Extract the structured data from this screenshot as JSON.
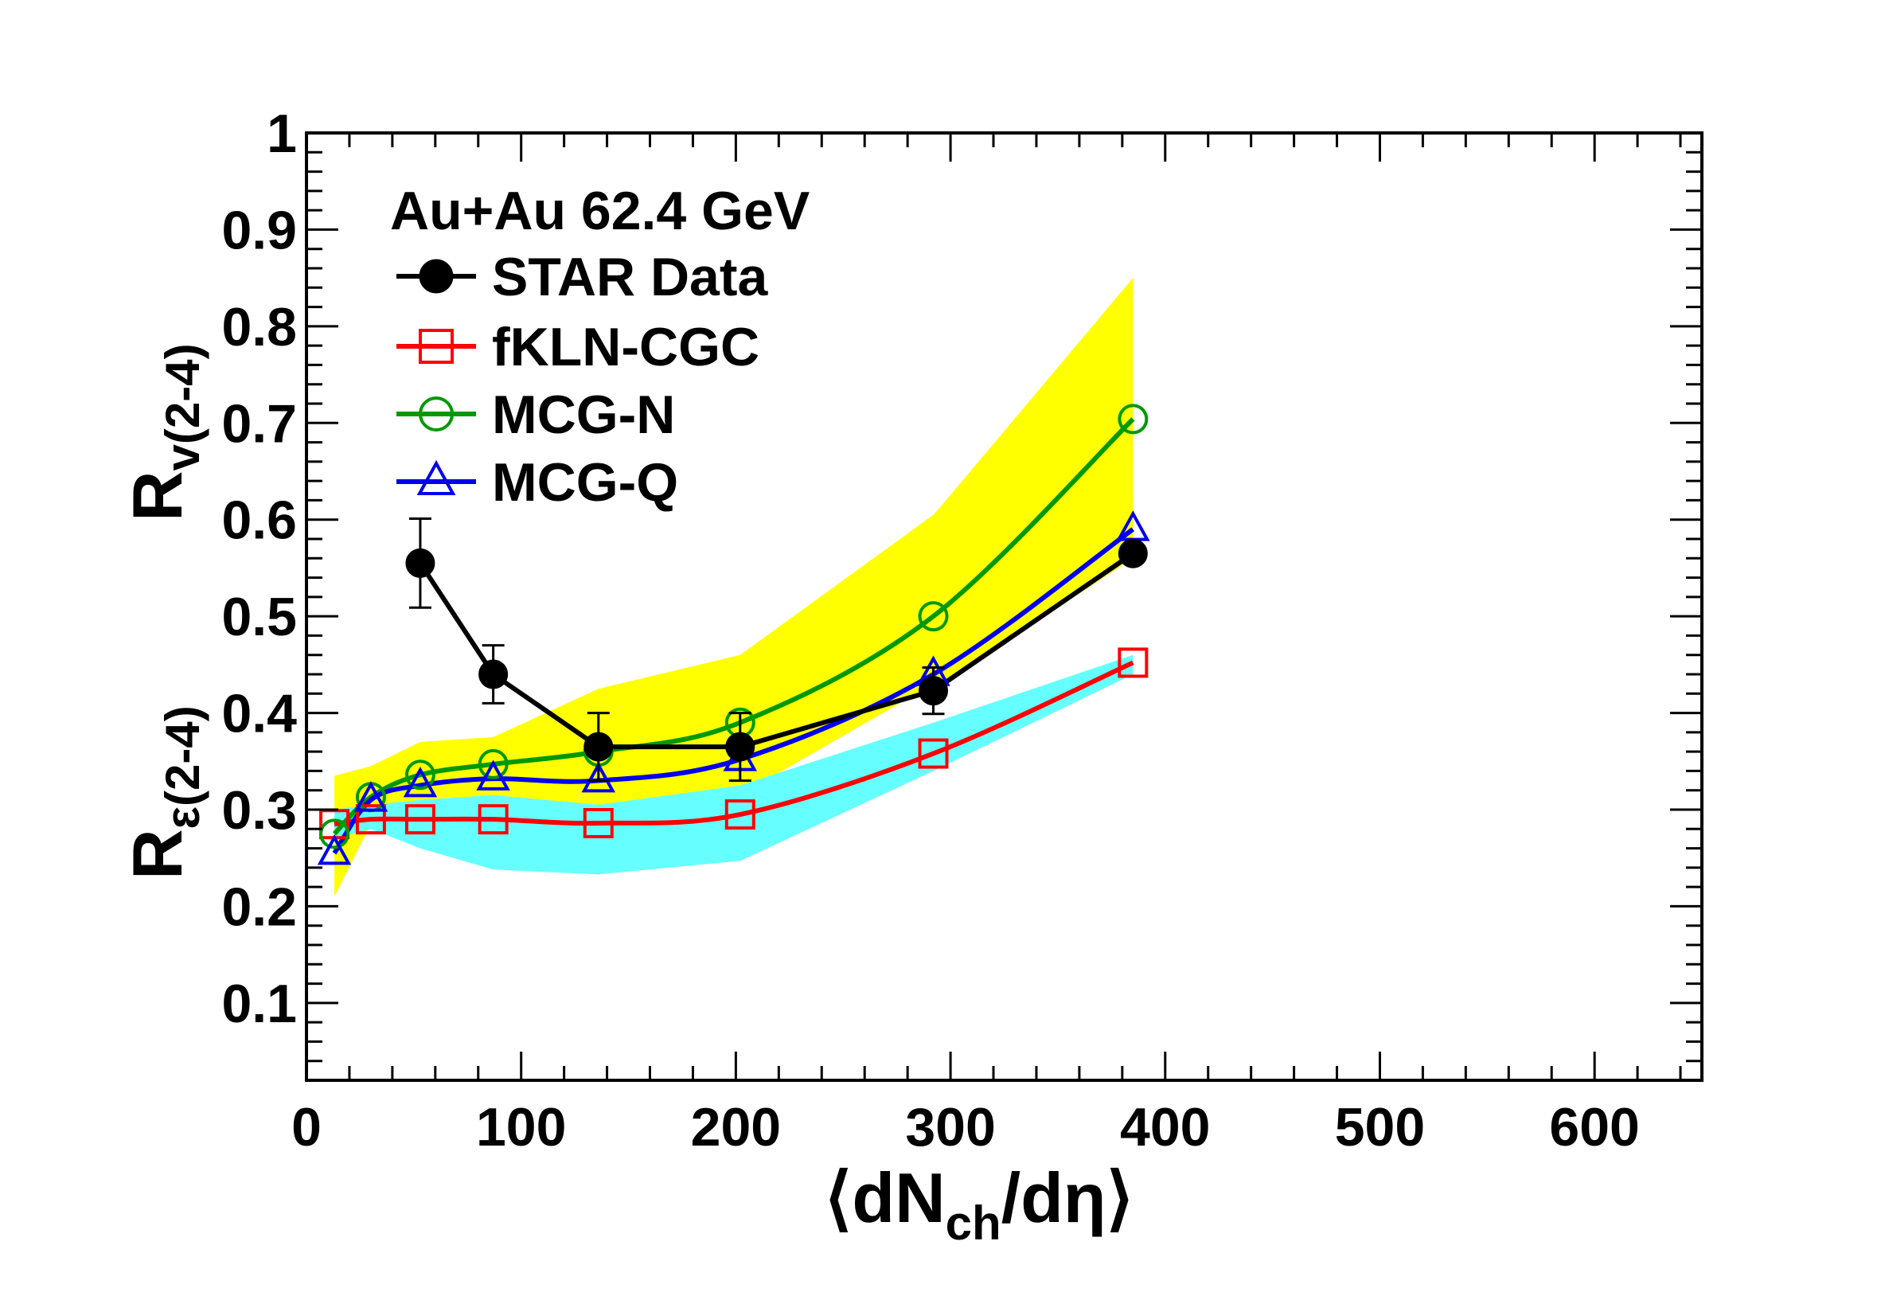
{
  "chart_data": {
    "type": "line",
    "title": "Au+Au 62.4 GeV",
    "xlabel": {
      "prefix": "⟨dN",
      "sub": "ch",
      "suffix": "/dη⟩"
    },
    "ylabel_top": {
      "main": "R",
      "sub": "v(2-4)"
    },
    "ylabel_bottom": {
      "main": "R",
      "sub": "ε(2-4)"
    },
    "xlim": [
      0,
      650
    ],
    "ylim": [
      0.02,
      1.0
    ],
    "x_ticks": [
      0,
      100,
      200,
      300,
      400,
      500,
      600
    ],
    "x_tick_labels": [
      "0",
      "100",
      "200",
      "300",
      "400",
      "500",
      "600"
    ],
    "y_ticks": [
      0.1,
      0.2,
      0.3,
      0.4,
      0.5,
      0.6,
      0.7,
      0.8,
      0.9,
      1.0
    ],
    "y_tick_labels": [
      "0.1",
      "0.2",
      "0.3",
      "0.4",
      "0.5",
      "0.6",
      "0.7",
      "0.8",
      "0.9",
      "1"
    ],
    "grid": false,
    "legend_position": "top-left",
    "bands": [
      {
        "color": "#ffff00",
        "x": [
          13,
          30,
          53,
          87,
          136,
          202,
          292,
          296,
          385
        ],
        "upper": [
          0.335,
          0.345,
          0.37,
          0.375,
          0.425,
          0.46,
          0.605,
          0.615,
          0.85
        ],
        "lower": [
          0.21,
          0.285,
          0.29,
          0.3,
          0.3,
          0.315,
          0.43,
          0.43,
          0.56
        ]
      },
      {
        "color": "#66ffff",
        "x": [
          13,
          30,
          53,
          87,
          136,
          202,
          292,
          385
        ],
        "upper": [
          0.3,
          0.305,
          0.31,
          0.315,
          0.305,
          0.325,
          0.39,
          0.46
        ],
        "lower": [
          0.27,
          0.28,
          0.26,
          0.238,
          0.233,
          0.247,
          0.34,
          0.44
        ]
      }
    ],
    "series": [
      {
        "name": "STAR Data",
        "color": "#000000",
        "marker": "filled-circle",
        "curve": "polyline",
        "x": [
          53,
          87,
          136,
          202,
          292,
          385
        ],
        "y": [
          0.555,
          0.44,
          0.365,
          0.365,
          0.423,
          0.565
        ],
        "yerr": [
          0.046,
          0.03,
          0.035,
          0.035,
          0.024,
          0.006
        ]
      },
      {
        "name": "fKLN-CGC",
        "color": "#ff0000",
        "marker": "open-square",
        "curve": "smooth",
        "x": [
          13,
          30,
          53,
          87,
          136,
          202,
          292,
          385
        ],
        "y": [
          0.285,
          0.29,
          0.29,
          0.29,
          0.286,
          0.295,
          0.358,
          0.452
        ]
      },
      {
        "name": "MCG-N",
        "color": "#009900",
        "marker": "open-circle",
        "curve": "smooth",
        "x": [
          13,
          30,
          53,
          87,
          136,
          202,
          292,
          385
        ],
        "y": [
          0.275,
          0.313,
          0.336,
          0.347,
          0.36,
          0.39,
          0.5,
          0.704
        ]
      },
      {
        "name": "MCG-Q",
        "color": "#0000ee",
        "marker": "open-triangle",
        "curve": "smooth",
        "x": [
          13,
          30,
          53,
          87,
          136,
          202,
          292,
          385
        ],
        "y": [
          0.255,
          0.31,
          0.325,
          0.332,
          0.33,
          0.352,
          0.44,
          0.59
        ]
      }
    ]
  }
}
